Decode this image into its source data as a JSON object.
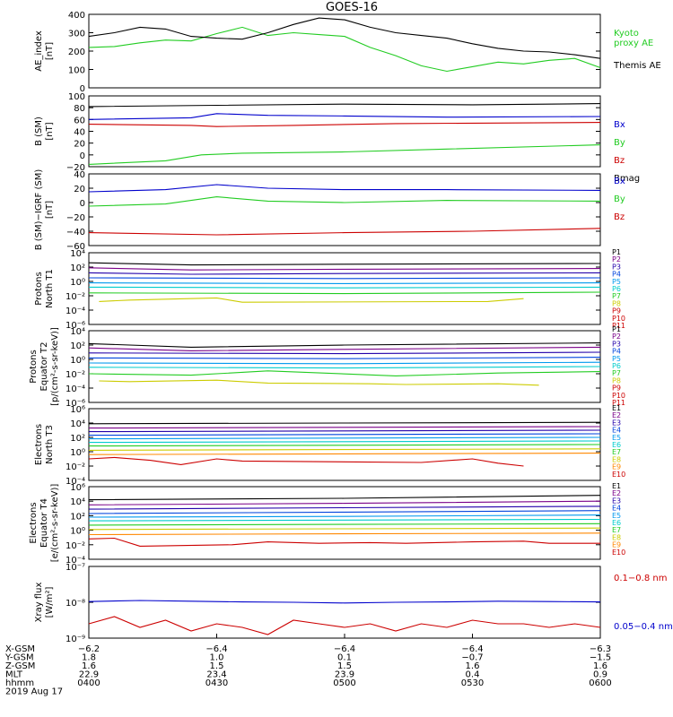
{
  "title": "GOES-16",
  "chart_data": [
    {
      "type": "line",
      "ylabel": "AE_index\n[nT]",
      "ylim": [
        0,
        400
      ],
      "yticks": [
        "0",
        "100",
        "200",
        "300",
        "400"
      ],
      "series": [
        {
          "name": "Kyoto\nproxy AE",
          "color": "#22cc22",
          "x": [
            0,
            0.05,
            0.1,
            0.15,
            0.2,
            0.25,
            0.3,
            0.35,
            0.4,
            0.45,
            0.5,
            0.55,
            0.6,
            0.65,
            0.7,
            0.75,
            0.8,
            0.85,
            0.9,
            0.95,
            1.0
          ],
          "y": [
            220,
            225,
            245,
            260,
            255,
            295,
            330,
            285,
            300,
            290,
            280,
            220,
            175,
            120,
            90,
            115,
            140,
            130,
            150,
            160,
            110
          ]
        },
        {
          "name": "Themis AE",
          "color": "#000000",
          "x": [
            0,
            0.05,
            0.1,
            0.15,
            0.2,
            0.25,
            0.3,
            0.35,
            0.4,
            0.45,
            0.5,
            0.55,
            0.6,
            0.65,
            0.7,
            0.75,
            0.8,
            0.85,
            0.9,
            0.95,
            1.0
          ],
          "y": [
            280,
            300,
            330,
            320,
            280,
            270,
            265,
            300,
            345,
            380,
            370,
            330,
            300,
            285,
            270,
            240,
            215,
            200,
            195,
            180,
            160
          ]
        }
      ]
    },
    {
      "type": "line",
      "ylabel": "B (SM)\n[nT]",
      "ylim": [
        -20,
        100
      ],
      "yticks": [
        "−20",
        "0",
        "20",
        "40",
        "60",
        "80",
        "100"
      ],
      "series": [
        {
          "name": "Bx",
          "color": "#0000cc",
          "x": [
            0,
            0.2,
            0.25,
            0.35,
            0.5,
            0.7,
            1.0
          ],
          "y": [
            60,
            63,
            70,
            67,
            66,
            64,
            65
          ]
        },
        {
          "name": "By",
          "color": "#22cc22",
          "x": [
            0,
            0.15,
            0.22,
            0.3,
            0.5,
            0.7,
            1.0
          ],
          "y": [
            -16,
            -10,
            0,
            3,
            5,
            10,
            17
          ]
        },
        {
          "name": "Bz",
          "color": "#cc0000",
          "x": [
            0,
            0.2,
            0.25,
            0.4,
            0.6,
            1.0
          ],
          "y": [
            52,
            50,
            48,
            50,
            53,
            55
          ]
        },
        {
          "name": "Bmag",
          "color": "#000000",
          "x": [
            0,
            0.25,
            0.5,
            0.75,
            1.0
          ],
          "y": [
            82,
            84,
            86,
            85,
            87
          ]
        }
      ]
    },
    {
      "type": "line",
      "ylabel": "B (SM)−IGRF (SM)\n[nT]",
      "ylim": [
        -60,
        40
      ],
      "yticks": [
        "−60",
        "−40",
        "−20",
        "0",
        "20",
        "40"
      ],
      "series": [
        {
          "name": "Bx",
          "color": "#0000cc",
          "x": [
            0,
            0.15,
            0.25,
            0.35,
            0.5,
            0.7,
            1.0
          ],
          "y": [
            15,
            18,
            25,
            20,
            18,
            18,
            17
          ]
        },
        {
          "name": "By",
          "color": "#22cc22",
          "x": [
            0,
            0.15,
            0.25,
            0.35,
            0.5,
            0.7,
            1.0
          ],
          "y": [
            -5,
            -2,
            8,
            2,
            0,
            3,
            2
          ]
        },
        {
          "name": "Bz",
          "color": "#cc0000",
          "x": [
            0,
            0.25,
            0.5,
            0.75,
            1.0
          ],
          "y": [
            -42,
            -45,
            -42,
            -40,
            -36
          ]
        }
      ]
    },
    {
      "type": "line",
      "ylabel": "Protons\nNorth T1",
      "ylim": [
        -6,
        4
      ],
      "yscale": "log",
      "yticks": [
        "10⁻⁶",
        "10⁻⁴",
        "10⁻²",
        "10⁰",
        "10²",
        "10⁴"
      ],
      "series": [
        {
          "name": "P1",
          "color": "#000000",
          "x": [
            0,
            0.2,
            0.5,
            1.0
          ],
          "y": [
            2.6,
            2.3,
            2.4,
            2.5
          ]
        },
        {
          "name": "P2",
          "color": "#7a0088",
          "x": [
            0,
            0.2,
            0.5,
            1.0
          ],
          "y": [
            1.9,
            1.6,
            1.7,
            1.8
          ]
        },
        {
          "name": "P3",
          "color": "#2200aa",
          "x": [
            0,
            0.2,
            0.5,
            1.0
          ],
          "y": [
            1.2,
            1.0,
            1.1,
            1.2
          ]
        },
        {
          "name": "P4",
          "color": "#0044dd",
          "x": [
            0,
            0.5,
            1.0
          ],
          "y": [
            0.5,
            0.4,
            0.5
          ]
        },
        {
          "name": "P5",
          "color": "#0099ee",
          "x": [
            0,
            0.5,
            1.0
          ],
          "y": [
            -0.2,
            -0.3,
            -0.2
          ]
        },
        {
          "name": "P6",
          "color": "#00cccc",
          "x": [
            0,
            0.5,
            1.0
          ],
          "y": [
            -0.8,
            -0.9,
            -0.8
          ]
        },
        {
          "name": "P7",
          "color": "#22cc22",
          "x": [
            0,
            0.5,
            1.0
          ],
          "y": [
            -1.6,
            -1.7,
            -1.5
          ]
        },
        {
          "name": "P8",
          "color": "#cccc00",
          "x": [
            0.02,
            0.08,
            0.25,
            0.3,
            0.78,
            0.85
          ],
          "y": [
            -2.8,
            -2.6,
            -2.3,
            -2.9,
            -2.8,
            -2.4
          ]
        }
      ],
      "legend_extra": [
        "P9",
        "P10",
        "P11"
      ]
    },
    {
      "type": "line",
      "ylabel": "Protons\nEquator T2\n[p/(cm²-s-sr-keV)]",
      "ylim": [
        -6,
        4
      ],
      "yscale": "log",
      "yticks": [
        "10⁻⁶",
        "10⁻⁴",
        "10⁻²",
        "10⁰",
        "10²",
        "10⁴"
      ],
      "series": [
        {
          "name": "P1",
          "color": "#000000",
          "x": [
            0,
            0.2,
            0.5,
            1.0
          ],
          "y": [
            2.2,
            1.7,
            2.0,
            2.3
          ]
        },
        {
          "name": "P2",
          "color": "#7a0088",
          "x": [
            0,
            0.2,
            0.5,
            1.0
          ],
          "y": [
            1.6,
            1.2,
            1.4,
            1.7
          ]
        },
        {
          "name": "P3",
          "color": "#2200aa",
          "x": [
            0,
            0.5,
            1.0
          ],
          "y": [
            0.9,
            0.8,
            1.0
          ]
        },
        {
          "name": "P4",
          "color": "#0044dd",
          "x": [
            0,
            0.5,
            1.0
          ],
          "y": [
            0.2,
            0.1,
            0.3
          ]
        },
        {
          "name": "P5",
          "color": "#0099ee",
          "x": [
            0,
            0.5,
            1.0
          ],
          "y": [
            -0.5,
            -0.6,
            -0.4
          ]
        },
        {
          "name": "P6",
          "color": "#00cccc",
          "x": [
            0,
            0.5,
            1.0
          ],
          "y": [
            -1.1,
            -1.2,
            -1.0
          ]
        },
        {
          "name": "P7",
          "color": "#22cc22",
          "x": [
            0,
            0.2,
            0.35,
            0.6,
            0.8,
            1.0
          ],
          "y": [
            -2.0,
            -2.2,
            -1.6,
            -2.3,
            -1.9,
            -1.7
          ]
        },
        {
          "name": "P8",
          "color": "#cccc00",
          "x": [
            0.02,
            0.08,
            0.25,
            0.35,
            0.55,
            0.62,
            0.8,
            0.88
          ],
          "y": [
            -3.0,
            -3.1,
            -2.9,
            -3.3,
            -3.4,
            -3.5,
            -3.4,
            -3.6
          ]
        }
      ],
      "legend_extra": [
        "P9",
        "P10",
        "P11"
      ]
    },
    {
      "type": "line",
      "ylabel": "Electrons\nNorth T3",
      "ylim": [
        -4,
        6
      ],
      "yscale": "log",
      "yticks": [
        "10⁻⁴",
        "10⁻²",
        "10⁰",
        "10²",
        "10⁴",
        "10⁶"
      ],
      "series": [
        {
          "name": "E1",
          "color": "#000000",
          "x": [
            0,
            0.5,
            1.0
          ],
          "y": [
            3.9,
            4.0,
            4.1
          ]
        },
        {
          "name": "E2",
          "color": "#7a0088",
          "x": [
            0,
            0.5,
            1.0
          ],
          "y": [
            3.3,
            3.4,
            3.5
          ]
        },
        {
          "name": "E3",
          "color": "#2200aa",
          "x": [
            0,
            0.5,
            1.0
          ],
          "y": [
            2.8,
            2.9,
            3.0
          ]
        },
        {
          "name": "E4",
          "color": "#0044dd",
          "x": [
            0,
            0.5,
            1.0
          ],
          "y": [
            2.3,
            2.4,
            2.5
          ]
        },
        {
          "name": "E5",
          "color": "#0099ee",
          "x": [
            0,
            0.5,
            1.0
          ],
          "y": [
            1.8,
            1.9,
            2.0
          ]
        },
        {
          "name": "E6",
          "color": "#00cccc",
          "x": [
            0,
            0.5,
            1.0
          ],
          "y": [
            1.3,
            1.4,
            1.5
          ]
        },
        {
          "name": "E7",
          "color": "#22cc22",
          "x": [
            0,
            0.5,
            1.0
          ],
          "y": [
            0.8,
            0.9,
            1.0
          ]
        },
        {
          "name": "E8",
          "color": "#cccc00",
          "x": [
            0,
            0.5,
            1.0
          ],
          "y": [
            0.2,
            0.3,
            0.4
          ]
        },
        {
          "name": "E9",
          "color": "#ff8800",
          "x": [
            0,
            0.5,
            1.0
          ],
          "y": [
            -0.4,
            -0.3,
            -0.2
          ]
        },
        {
          "name": "E10",
          "color": "#cc0000",
          "x": [
            0,
            0.05,
            0.12,
            0.18,
            0.25,
            0.3,
            0.65,
            0.75,
            0.8,
            0.85
          ],
          "y": [
            -1.0,
            -0.8,
            -1.2,
            -1.8,
            -1.0,
            -1.3,
            -1.5,
            -1.0,
            -1.6,
            -2.0
          ]
        }
      ]
    },
    {
      "type": "line",
      "ylabel": "Electrons\nEquator T4\n[e/(cm²-s-sr-keV)]",
      "ylim": [
        -4,
        6
      ],
      "yscale": "log",
      "yticks": [
        "10⁻⁴",
        "10⁻²",
        "10⁰",
        "10²",
        "10⁴",
        "10⁶"
      ],
      "series": [
        {
          "name": "E1",
          "color": "#000000",
          "x": [
            0,
            0.5,
            1.0
          ],
          "y": [
            4.2,
            4.4,
            4.8
          ]
        },
        {
          "name": "E2",
          "color": "#7a0088",
          "x": [
            0,
            0.5,
            1.0
          ],
          "y": [
            3.5,
            3.7,
            4.0
          ]
        },
        {
          "name": "E3",
          "color": "#2200aa",
          "x": [
            0,
            0.5,
            1.0
          ],
          "y": [
            2.9,
            3.1,
            3.3
          ]
        },
        {
          "name": "E4",
          "color": "#0044dd",
          "x": [
            0,
            0.5,
            1.0
          ],
          "y": [
            2.3,
            2.5,
            2.7
          ]
        },
        {
          "name": "E5",
          "color": "#0099ee",
          "x": [
            0,
            0.5,
            1.0
          ],
          "y": [
            1.8,
            1.9,
            2.1
          ]
        },
        {
          "name": "E6",
          "color": "#00cccc",
          "x": [
            0,
            0.5,
            1.0
          ],
          "y": [
            1.3,
            1.4,
            1.5
          ]
        },
        {
          "name": "E7",
          "color": "#22cc22",
          "x": [
            0,
            0.5,
            1.0
          ],
          "y": [
            0.7,
            0.8,
            0.9
          ]
        },
        {
          "name": "E8",
          "color": "#cccc00",
          "x": [
            0,
            0.5,
            1.0
          ],
          "y": [
            0.1,
            0.2,
            0.3
          ]
        },
        {
          "name": "E9",
          "color": "#ff8800",
          "x": [
            0,
            0.5,
            1.0
          ],
          "y": [
            -0.6,
            -0.5,
            -0.4
          ]
        },
        {
          "name": "E10",
          "color": "#cc0000",
          "x": [
            0,
            0.05,
            0.1,
            0.28,
            0.35,
            0.45,
            0.55,
            0.62,
            0.75,
            0.85,
            0.9,
            1.0
          ],
          "y": [
            -1.2,
            -1.1,
            -2.2,
            -2.0,
            -1.6,
            -1.8,
            -1.7,
            -1.8,
            -1.6,
            -1.5,
            -1.8,
            -1.8
          ]
        }
      ]
    },
    {
      "type": "line",
      "ylabel": "Xray flux\n[W/m²]",
      "ylim": [
        -9,
        -7
      ],
      "yscale": "log",
      "yticks": [
        "10⁻⁹",
        "10⁻⁸",
        "10⁻⁷"
      ],
      "series": [
        {
          "name": "0.1−0.8 nm",
          "color": "#cc0000",
          "x": [
            0,
            0.05,
            0.1,
            0.15,
            0.2,
            0.25,
            0.3,
            0.35,
            0.4,
            0.45,
            0.5,
            0.55,
            0.6,
            0.65,
            0.7,
            0.75,
            0.8,
            0.85,
            0.9,
            0.95,
            1.0
          ],
          "y": [
            -8.6,
            -8.4,
            -8.7,
            -8.5,
            -8.8,
            -8.6,
            -8.7,
            -8.9,
            -8.5,
            -8.6,
            -8.7,
            -8.6,
            -8.8,
            -8.6,
            -8.7,
            -8.5,
            -8.6,
            -8.6,
            -8.7,
            -8.6,
            -8.7
          ]
        },
        {
          "name": "0.05−0.4 nm",
          "color": "#0000cc",
          "x": [
            0,
            0.1,
            0.2,
            0.3,
            0.4,
            0.5,
            0.6,
            0.7,
            0.8,
            0.9,
            1.0
          ],
          "y": [
            -7.98,
            -7.95,
            -7.97,
            -7.99,
            -8.0,
            -8.02,
            -8.0,
            -7.99,
            -7.97,
            -7.98,
            -7.99
          ]
        }
      ]
    }
  ],
  "footer": {
    "row_labels": [
      "X-GSM",
      "Y-GSM",
      "Z-GSM",
      "MLT",
      "hhmm",
      "2019 Aug 17"
    ],
    "columns": [
      [
        "−6.2",
        "1.8",
        "1.6",
        "22.9",
        "0400"
      ],
      [
        "−6.4",
        "1.0",
        "1.5",
        "23.4",
        "0430"
      ],
      [
        "−6.4",
        "0.1",
        "1.5",
        "23.9",
        "0500"
      ],
      [
        "−6.4",
        "−0.7",
        "1.6",
        "0.4",
        "0530"
      ],
      [
        "−6.3",
        "−1.5",
        "1.6",
        "0.9",
        "0600"
      ]
    ]
  }
}
